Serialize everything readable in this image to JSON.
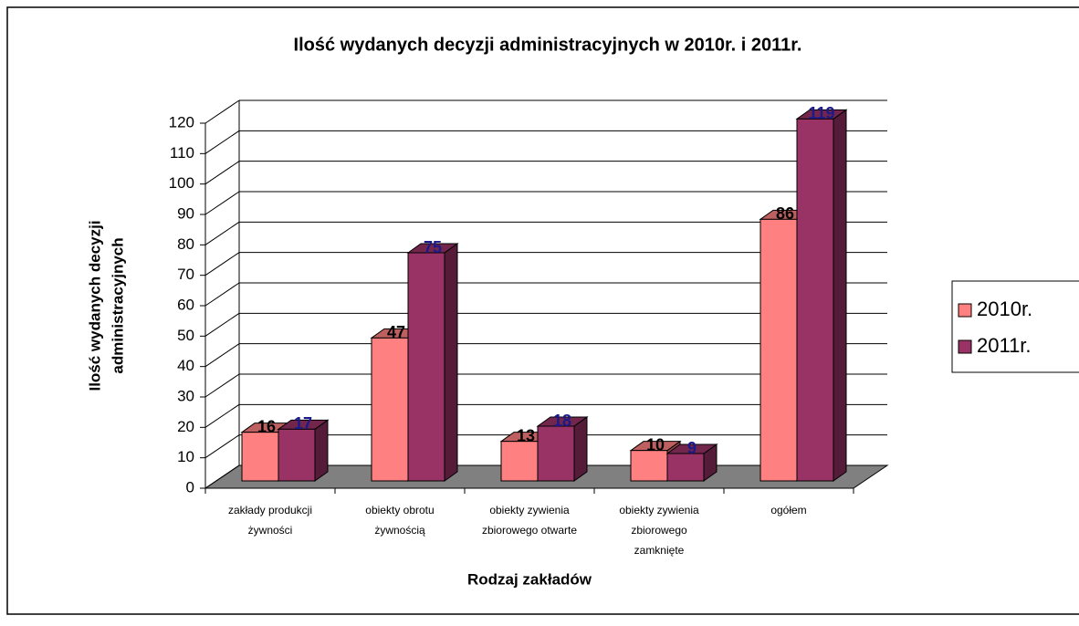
{
  "chart_data": {
    "type": "bar3d",
    "title": "Ilość wydanych decyzji administracyjnych w 2010r. i 2011r.",
    "ylabel": [
      "Ilość wydanych decyzji",
      "administracyjnych"
    ],
    "xlabel": "Rodzaj zakładów",
    "categories": [
      [
        "zakłady produkcji",
        "żywności"
      ],
      [
        "obiekty obrotu",
        "żywnością"
      ],
      [
        "obiekty zywienia",
        "zbiorowego otwarte"
      ],
      [
        "obiekty zywienia",
        "zbiorowego",
        "zamknięte"
      ],
      [
        "ogółem"
      ]
    ],
    "series": [
      {
        "name": "2010r.",
        "color": "#ff8080",
        "label_color": "#000000",
        "values": [
          16,
          47,
          13,
          10,
          86
        ]
      },
      {
        "name": "2011r.",
        "color": "#993366",
        "label_color": "#1a1a8c",
        "values": [
          17,
          75,
          18,
          9,
          119
        ]
      }
    ],
    "ylim": [
      0,
      120
    ],
    "yticks": [
      0,
      10,
      20,
      30,
      40,
      50,
      60,
      70,
      80,
      90,
      100,
      110,
      120
    ],
    "grid": true,
    "legend": "right"
  }
}
